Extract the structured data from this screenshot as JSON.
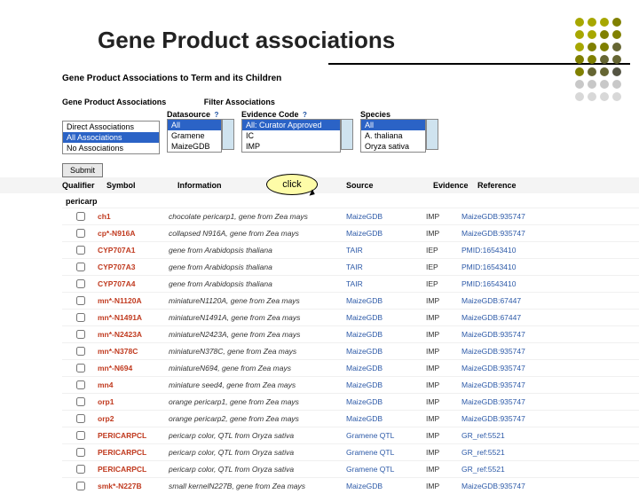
{
  "title": "Gene Product associations",
  "subtitle": "Gene Product Associations to Term and its Children",
  "filters": {
    "label1": "Gene Product Associations",
    "label2": "Filter Associations",
    "datasource_header": "Datasource",
    "evidence_header": "Evidence Code",
    "species_header": "Species",
    "help_marker": "?",
    "assoc_box": {
      "opts": [
        "Direct Associations",
        "All Associations",
        "No Associations"
      ],
      "selected": 1
    },
    "datasource_box": {
      "opts": [
        "All",
        "Gramene",
        "MaizeGDB"
      ],
      "selected": 0
    },
    "evidence_box": {
      "opts": [
        "All: Curator Approved",
        "IC",
        "IMP"
      ],
      "selected": 0
    },
    "species_box": {
      "opts": [
        "All",
        "A. thaliana",
        "Oryza sativa"
      ],
      "selected": 0
    },
    "submit": "Submit"
  },
  "thead": {
    "qualifier": "Qualifier",
    "symbol": "Symbol",
    "info": "Information",
    "source": "Source",
    "evidence": "Evidence",
    "reference": "Reference"
  },
  "bubble": "click",
  "group_header": "pericarp",
  "rows": [
    {
      "symbol": "ch1",
      "info": "chocolate pericarp1, gene from Zea mays",
      "source": "MaizeGDB",
      "ev": "IMP",
      "ref": "MaizeGDB:935747"
    },
    {
      "symbol": "cp*-N916A",
      "info": "collapsed N916A, gene from Zea mays",
      "source": "MaizeGDB",
      "ev": "IMP",
      "ref": "MaizeGDB:935747"
    },
    {
      "symbol": "CYP707A1",
      "info": "gene from Arabidopsis thaliana",
      "source": "TAIR",
      "ev": "IEP",
      "ref": "PMID:16543410"
    },
    {
      "symbol": "CYP707A3",
      "info": "gene from Arabidopsis thaliana",
      "source": "TAIR",
      "ev": "IEP",
      "ref": "PMID:16543410"
    },
    {
      "symbol": "CYP707A4",
      "info": "gene from Arabidopsis thaliana",
      "source": "TAIR",
      "ev": "IEP",
      "ref": "PMID:16543410"
    },
    {
      "symbol": "mn*-N1120A",
      "info": "miniatureN1120A, gene from Zea mays",
      "source": "MaizeGDB",
      "ev": "IMP",
      "ref": "MaizeGDB:67447"
    },
    {
      "symbol": "mn*-N1491A",
      "info": "miniatureN1491A, gene from Zea mays",
      "source": "MaizeGDB",
      "ev": "IMP",
      "ref": "MaizeGDB:67447"
    },
    {
      "symbol": "mn*-N2423A",
      "info": "miniatureN2423A, gene from Zea mays",
      "source": "MaizeGDB",
      "ev": "IMP",
      "ref": "MaizeGDB:935747"
    },
    {
      "symbol": "mn*-N378C",
      "info": "miniatureN378C, gene from Zea mays",
      "source": "MaizeGDB",
      "ev": "IMP",
      "ref": "MaizeGDB:935747"
    },
    {
      "symbol": "mn*-N694",
      "info": "miniatureN694, gene from Zea mays",
      "source": "MaizeGDB",
      "ev": "IMP",
      "ref": "MaizeGDB:935747"
    },
    {
      "symbol": "mn4",
      "info": "miniature seed4, gene from Zea mays",
      "source": "MaizeGDB",
      "ev": "IMP",
      "ref": "MaizeGDB:935747"
    },
    {
      "symbol": "orp1",
      "info": "orange pericarp1, gene from Zea mays",
      "source": "MaizeGDB",
      "ev": "IMP",
      "ref": "MaizeGDB:935747"
    },
    {
      "symbol": "orp2",
      "info": "orange pericarp2, gene from Zea mays",
      "source": "MaizeGDB",
      "ev": "IMP",
      "ref": "MaizeGDB:935747"
    },
    {
      "symbol": "PERICARPCL",
      "info": "pericarp color, QTL from Oryza sativa",
      "source": "Gramene QTL",
      "ev": "IMP",
      "ref": "GR_ref:5521"
    },
    {
      "symbol": "PERICARPCL",
      "info": "pericarp color, QTL from Oryza sativa",
      "source": "Gramene QTL",
      "ev": "IMP",
      "ref": "GR_ref:5521"
    },
    {
      "symbol": "PERICARPCL",
      "info": "pericarp color, QTL from Oryza sativa",
      "source": "Gramene QTL",
      "ev": "IMP",
      "ref": "GR_ref:5521"
    },
    {
      "symbol": "smk*-N227B",
      "info": "small kernelN227B, gene from Zea mays",
      "source": "MaizeGDB",
      "ev": "IMP",
      "ref": "MaizeGDB:935747"
    }
  ],
  "decor_colors": [
    "#a7a700",
    "#a7a700",
    "#a7a700",
    "#808000",
    "#a7a700",
    "#a7a700",
    "#808000",
    "#808000",
    "#a7a700",
    "#808000",
    "#808000",
    "#666633",
    "#808000",
    "#808000",
    "#666633",
    "#666633",
    "#808000",
    "#666633",
    "#666633",
    "#555544",
    "#c8c8c8",
    "#c8c8c8",
    "#c8c8c8",
    "#c8c8c8",
    "#d8d8d8",
    "#d8d8d8",
    "#d8d8d8",
    "#d8d8d8"
  ],
  "style_colors": {
    "link": "#2d5aa8",
    "symbol": "#c03a1f",
    "sel_bg": "#2b63c6",
    "bubble_bg": "#fefca8"
  }
}
